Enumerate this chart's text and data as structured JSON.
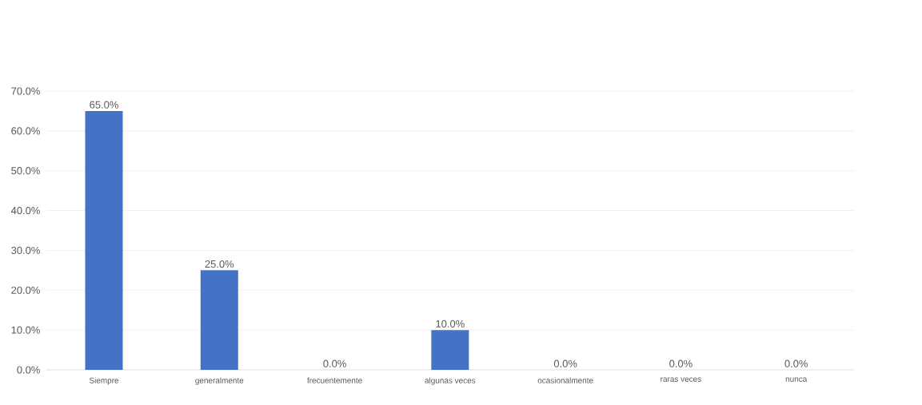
{
  "chart_data": {
    "type": "bar",
    "categories": [
      "Siempre",
      "generalmente",
      "frecuentemente",
      "algunas veces",
      "ocasionalmente",
      "raras veces",
      "nunca"
    ],
    "values": [
      65,
      25,
      0,
      10,
      0,
      0,
      0
    ],
    "value_labels": [
      "65.0%",
      "25.0%",
      "0.0%",
      "10.0%",
      "0.0%",
      "0.0%",
      "0.0%"
    ],
    "color": "#4472c4",
    "ylim": [
      0,
      70
    ],
    "yticks": [
      {
        "value": 0,
        "label": "0.0%"
      },
      {
        "value": 10,
        "label": "10.0%"
      },
      {
        "value": 20,
        "label": "20.0%"
      },
      {
        "value": 30,
        "label": "30.0%"
      },
      {
        "value": 40,
        "label": "40.0%"
      },
      {
        "value": 50,
        "label": "50.0%"
      },
      {
        "value": 60,
        "label": "60.0%"
      },
      {
        "value": 70,
        "label": "70.0%"
      }
    ],
    "grid": "y"
  }
}
